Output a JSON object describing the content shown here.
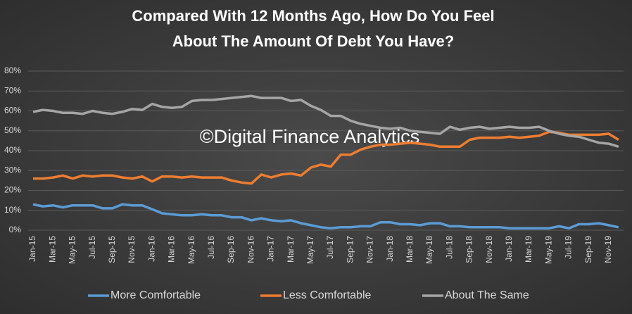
{
  "chart_data": {
    "type": "line",
    "title": [
      "Compared With 12 Months Ago, How Do You Feel",
      "About The Amount Of Debt You Have?"
    ],
    "watermark": "©Digital Finance Analytics",
    "categories": [
      "Jan-15",
      null,
      "Mar-15",
      null,
      "May-15",
      null,
      "Jul-15",
      null,
      "Sep-15",
      null,
      "Nov-15",
      null,
      "Jan-16",
      null,
      "Mar-16",
      null,
      "May-16",
      null,
      "Jul-16",
      null,
      "Sep-16",
      null,
      "Nov-16",
      null,
      "Jan-17",
      null,
      "Mar-17",
      null,
      "May-17",
      null,
      "Jul-17",
      null,
      "Sep-17",
      null,
      "Nov-17",
      null,
      "Jan-18",
      null,
      "Mar-18",
      null,
      "May-18",
      null,
      "Jul-18",
      null,
      "Sep-18",
      null,
      "Nov-18",
      null,
      "Jan-19",
      null,
      "Mar-19",
      null,
      "May-19",
      null,
      "Jul-19",
      null,
      "Sep-19",
      null,
      "Nov-19",
      null
    ],
    "series": [
      {
        "name": "More Comfortable",
        "color": "#5b9bd5",
        "values": [
          13,
          12,
          12.5,
          11.5,
          12.5,
          12.5,
          12.5,
          11,
          11,
          13,
          12.5,
          12.5,
          10.5,
          8.5,
          8,
          7.5,
          7.5,
          8,
          7.5,
          7.5,
          6.5,
          6.5,
          5,
          6,
          5,
          4.5,
          5,
          3.5,
          2.5,
          1.5,
          1,
          1.5,
          1.5,
          2,
          2,
          4,
          4,
          3,
          3,
          2.5,
          3.5,
          3.5,
          2,
          2,
          1.5,
          1.5,
          1.5,
          1.5,
          1,
          1,
          1,
          1,
          1,
          2,
          1,
          3,
          3,
          3.5,
          2.5,
          1.5
        ]
      },
      {
        "name": "Less Comfortable",
        "color": "#ed7d31",
        "values": [
          26,
          26,
          26.5,
          27.5,
          26,
          27.5,
          27,
          27.5,
          27.5,
          26.5,
          26,
          27,
          24.5,
          27,
          27,
          26.5,
          27,
          26.5,
          26.5,
          26.5,
          25,
          24,
          23.5,
          28,
          26.5,
          28,
          28.5,
          27.5,
          31.5,
          33,
          32,
          38,
          38,
          40.5,
          42,
          43,
          43,
          43.5,
          44,
          43.5,
          43,
          42,
          42,
          42,
          45.5,
          46.5,
          46.5,
          46.5,
          47,
          46.5,
          47,
          47.5,
          49.5,
          49,
          48,
          48,
          48,
          48,
          48.5,
          45.5
        ]
      },
      {
        "name": "About The Same",
        "color": "#a5a5a5",
        "values": [
          59.5,
          60.5,
          60,
          59,
          59,
          58.5,
          60,
          59,
          58.5,
          59.5,
          61,
          60.5,
          63.5,
          62,
          61.5,
          62,
          65,
          65.5,
          65.5,
          66,
          66.5,
          67,
          67.5,
          66.5,
          66.5,
          66.5,
          65,
          65.5,
          62.5,
          60.5,
          57.5,
          57.5,
          55,
          53.5,
          52.5,
          51.5,
          51,
          51.5,
          50,
          49.5,
          49,
          48.5,
          52,
          50.5,
          51.5,
          52,
          51,
          51.5,
          52,
          51.5,
          51.5,
          52,
          50,
          48.5,
          47.5,
          47,
          45.5,
          44,
          43.5,
          42
        ]
      }
    ],
    "ylim": [
      0,
      80
    ],
    "yticks": [
      {
        "value": 0,
        "label": "0%"
      },
      {
        "value": 10,
        "label": "10%"
      },
      {
        "value": 20,
        "label": "20%"
      },
      {
        "value": 30,
        "label": "30%"
      },
      {
        "value": 40,
        "label": "40%"
      },
      {
        "value": 50,
        "label": "50%"
      },
      {
        "value": 60,
        "label": "60%"
      },
      {
        "value": 70,
        "label": "70%"
      },
      {
        "value": 80,
        "label": "80%"
      }
    ],
    "grid": true,
    "legend": "bottom"
  }
}
